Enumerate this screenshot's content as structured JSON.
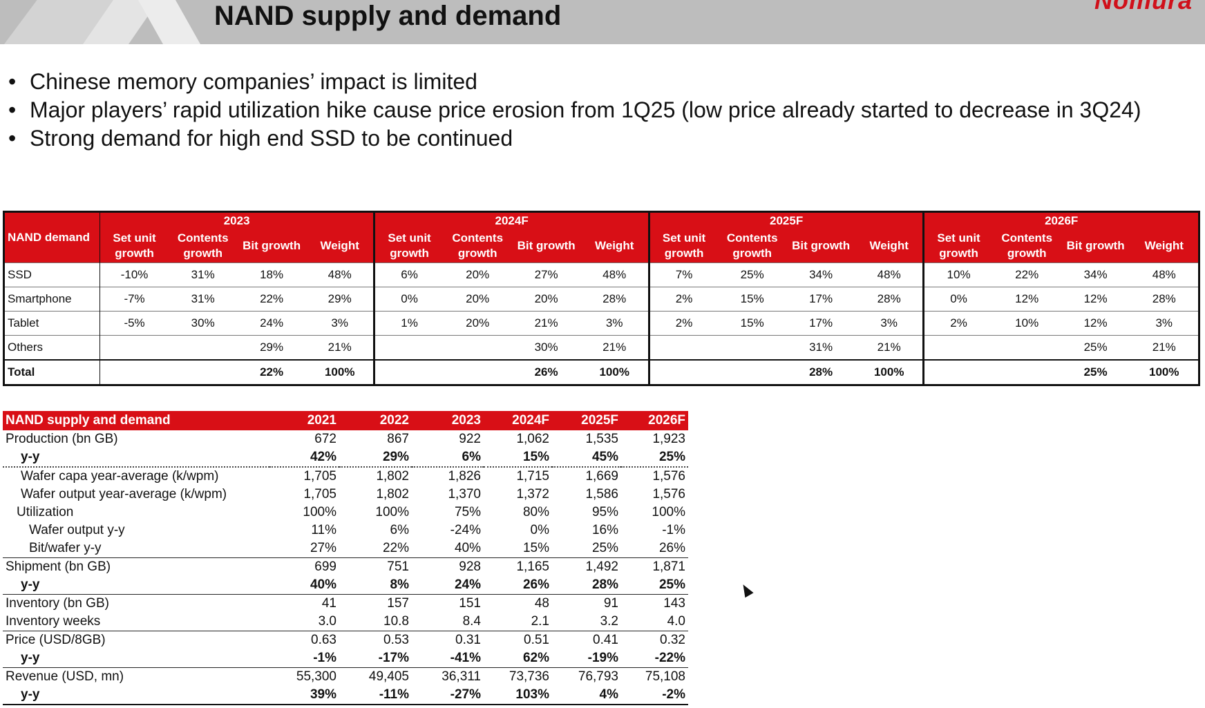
{
  "header": {
    "title": "NAND supply and demand",
    "logo_text": "Nomura"
  },
  "bullets": [
    "Chinese memory companies’ impact is limited",
    "Major players’ rapid utilization hike cause price erosion from 1Q25 (low price already started to decrease in 3Q24)",
    "Strong demand for high end SSD to be continued"
  ],
  "demand": {
    "title": "NAND demand",
    "years": [
      "2023",
      "2024F",
      "2025F",
      "2026F"
    ],
    "col_labels": [
      "Set unit growth",
      "Contents growth",
      "Bit growth",
      "Weight"
    ],
    "rows": [
      {
        "label": "SSD",
        "cells": [
          "-10%",
          "31%",
          "18%",
          "48%",
          "6%",
          "20%",
          "27%",
          "48%",
          "7%",
          "25%",
          "34%",
          "48%",
          "10%",
          "22%",
          "34%",
          "48%"
        ]
      },
      {
        "label": "Smartphone",
        "cells": [
          "-7%",
          "31%",
          "22%",
          "29%",
          "0%",
          "20%",
          "20%",
          "28%",
          "2%",
          "15%",
          "17%",
          "28%",
          "0%",
          "12%",
          "12%",
          "28%"
        ]
      },
      {
        "label": "Tablet",
        "cells": [
          "-5%",
          "30%",
          "24%",
          "3%",
          "1%",
          "20%",
          "21%",
          "3%",
          "2%",
          "15%",
          "17%",
          "3%",
          "2%",
          "10%",
          "12%",
          "3%"
        ]
      },
      {
        "label": "Others",
        "cells": [
          "",
          "",
          "29%",
          "21%",
          "",
          "",
          "30%",
          "21%",
          "",
          "",
          "31%",
          "21%",
          "",
          "",
          "25%",
          "21%"
        ]
      },
      {
        "label": "Total",
        "cells": [
          "",
          "",
          "22%",
          "100%",
          "",
          "",
          "26%",
          "100%",
          "",
          "",
          "28%",
          "100%",
          "",
          "",
          "25%",
          "100%"
        ]
      }
    ]
  },
  "supply": {
    "title": "NAND supply and demand",
    "years": [
      "2021",
      "2022",
      "2023",
      "2024F",
      "2025F",
      "2026F"
    ],
    "rows": [
      {
        "label": "Production (bn GB)",
        "values": [
          "672",
          "867",
          "922",
          "1,062",
          "1,535",
          "1,923"
        ]
      },
      {
        "label": "y-y",
        "values": [
          "42%",
          "29%",
          "6%",
          "15%",
          "45%",
          "25%"
        ]
      },
      {
        "label": "Wafer capa year-average (k/wpm)",
        "values": [
          "1,705",
          "1,802",
          "1,826",
          "1,715",
          "1,669",
          "1,576"
        ]
      },
      {
        "label": "Wafer output year-average (k/wpm)",
        "values": [
          "1,705",
          "1,802",
          "1,370",
          "1,372",
          "1,586",
          "1,576"
        ]
      },
      {
        "label": "Utilization",
        "values": [
          "100%",
          "100%",
          "75%",
          "80%",
          "95%",
          "100%"
        ]
      },
      {
        "label": "Wafer output y-y",
        "values": [
          "11%",
          "6%",
          "-24%",
          "0%",
          "16%",
          "-1%"
        ]
      },
      {
        "label": "Bit/wafer y-y",
        "values": [
          "27%",
          "22%",
          "40%",
          "15%",
          "25%",
          "26%"
        ]
      },
      {
        "label": "Shipment (bn GB)",
        "values": [
          "699",
          "751",
          "928",
          "1,165",
          "1,492",
          "1,871"
        ]
      },
      {
        "label": "y-y",
        "values": [
          "40%",
          "8%",
          "24%",
          "26%",
          "28%",
          "25%"
        ]
      },
      {
        "label": "Inventory (bn GB)",
        "values": [
          "41",
          "157",
          "151",
          "48",
          "91",
          "143"
        ]
      },
      {
        "label": "Inventory weeks",
        "values": [
          "3.0",
          "10.8",
          "8.4",
          "2.1",
          "3.2",
          "4.0"
        ]
      },
      {
        "label": "Price (USD/8GB)",
        "values": [
          "0.63",
          "0.53",
          "0.31",
          "0.51",
          "0.41",
          "0.32"
        ]
      },
      {
        "label": "y-y",
        "values": [
          "-1%",
          "-17%",
          "-41%",
          "62%",
          "-19%",
          "-22%"
        ]
      },
      {
        "label": "Revenue (USD, mn)",
        "values": [
          "55,300",
          "49,405",
          "36,311",
          "73,736",
          "76,793",
          "75,108"
        ]
      },
      {
        "label": "y-y",
        "values": [
          "39%",
          "-11%",
          "-27%",
          "103%",
          "4%",
          "-2%"
        ]
      }
    ]
  }
}
